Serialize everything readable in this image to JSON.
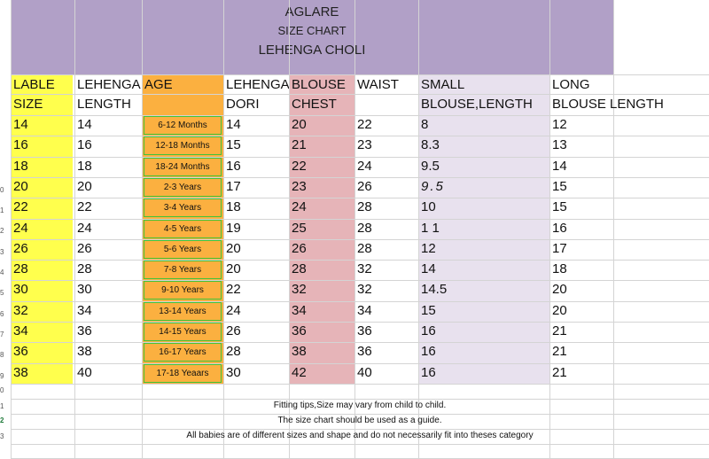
{
  "banner": {
    "brand": "AGLARE",
    "subtitle": "SIZE CHART",
    "product": "LEHENGA CHOLI"
  },
  "colors": {
    "banner": "#b1a0c7",
    "label_col": "#ffff4d",
    "age_col": "#fbb040",
    "chest_col": "#e6b4b8",
    "small_col": "#e8e1ee",
    "age_border": "#41c43a"
  },
  "headers": {
    "row1": [
      "LABLE",
      "LEHENGA",
      "AGE",
      "LEHENGA",
      "BLOUSE",
      "WAIST",
      "SMALL",
      "LONG"
    ],
    "row2": [
      "SIZE",
      "LENGTH",
      "",
      "DORI",
      "CHEST",
      "",
      "BLOUSE,LENGTH",
      "BLOUSE LENGTH"
    ]
  },
  "rows": [
    {
      "size": "14",
      "length": "14",
      "age": "6-12 Months",
      "dori": "14",
      "chest": "20",
      "waist": "22",
      "small": "8",
      "long": "12"
    },
    {
      "size": "16",
      "length": "16",
      "age": "12-18 Months",
      "dori": "15",
      "chest": "21",
      "waist": "23",
      "small": "8.3",
      "long": "13"
    },
    {
      "size": "18",
      "length": "18",
      "age": "18-24 Months",
      "dori": "16",
      "chest": "22",
      "waist": "24",
      "small": "9.5",
      "long": "14"
    },
    {
      "size": "20",
      "length": "20",
      "age": "2-3 Years",
      "dori": "17",
      "chest": "23",
      "waist": "26",
      "small": "9.5",
      "long": "15"
    },
    {
      "size": "22",
      "length": "22",
      "age": "3-4 Years",
      "dori": "18",
      "chest": "24",
      "waist": "28",
      "small": "10",
      "long": "15"
    },
    {
      "size": "24",
      "length": "24",
      "age": "4-5 Years",
      "dori": "19",
      "chest": "25",
      "waist": "28",
      "small": "1 1",
      "long": "16"
    },
    {
      "size": "26",
      "length": "26",
      "age": "5-6 Years",
      "dori": "20",
      "chest": "26",
      "waist": "28",
      "small": "12",
      "long": "17"
    },
    {
      "size": "28",
      "length": "28",
      "age": "7-8 Years",
      "dori": "20",
      "chest": "28",
      "waist": "32",
      "small": "14",
      "long": "18"
    },
    {
      "size": "30",
      "length": "30",
      "age": "9-10 Years",
      "dori": "22",
      "chest": "32",
      "waist": "32",
      "small": "14.5",
      "long": "20"
    },
    {
      "size": "32",
      "length": "34",
      "age": "13-14 Years",
      "dori": "24",
      "chest": "34",
      "waist": "34",
      "small": "15",
      "long": "20"
    },
    {
      "size": "34",
      "length": "36",
      "age": "14-15 Years",
      "dori": "26",
      "chest": "36",
      "waist": "36",
      "small": "16",
      "long": "21"
    },
    {
      "size": "36",
      "length": "38",
      "age": "16-17 Years",
      "dori": "28",
      "chest": "38",
      "waist": "36",
      "small": "16",
      "long": "21"
    },
    {
      "size": "38",
      "length": "40",
      "age": "17-18 Yeaars",
      "dori": "30",
      "chest": "42",
      "waist": "40",
      "small": "16",
      "long": "21"
    }
  ],
  "notes": [
    "Fitting tips,Size may vary from child to child.",
    "The size chart should be used as a guide.",
    "All babies are of different sizes and shape and do not necessarily fit into theses category"
  ],
  "row_numbers": [
    "0",
    "1",
    "2",
    "3",
    "4",
    "5",
    "6",
    "7",
    "8",
    "9",
    "0",
    "1",
    "2",
    "3"
  ]
}
